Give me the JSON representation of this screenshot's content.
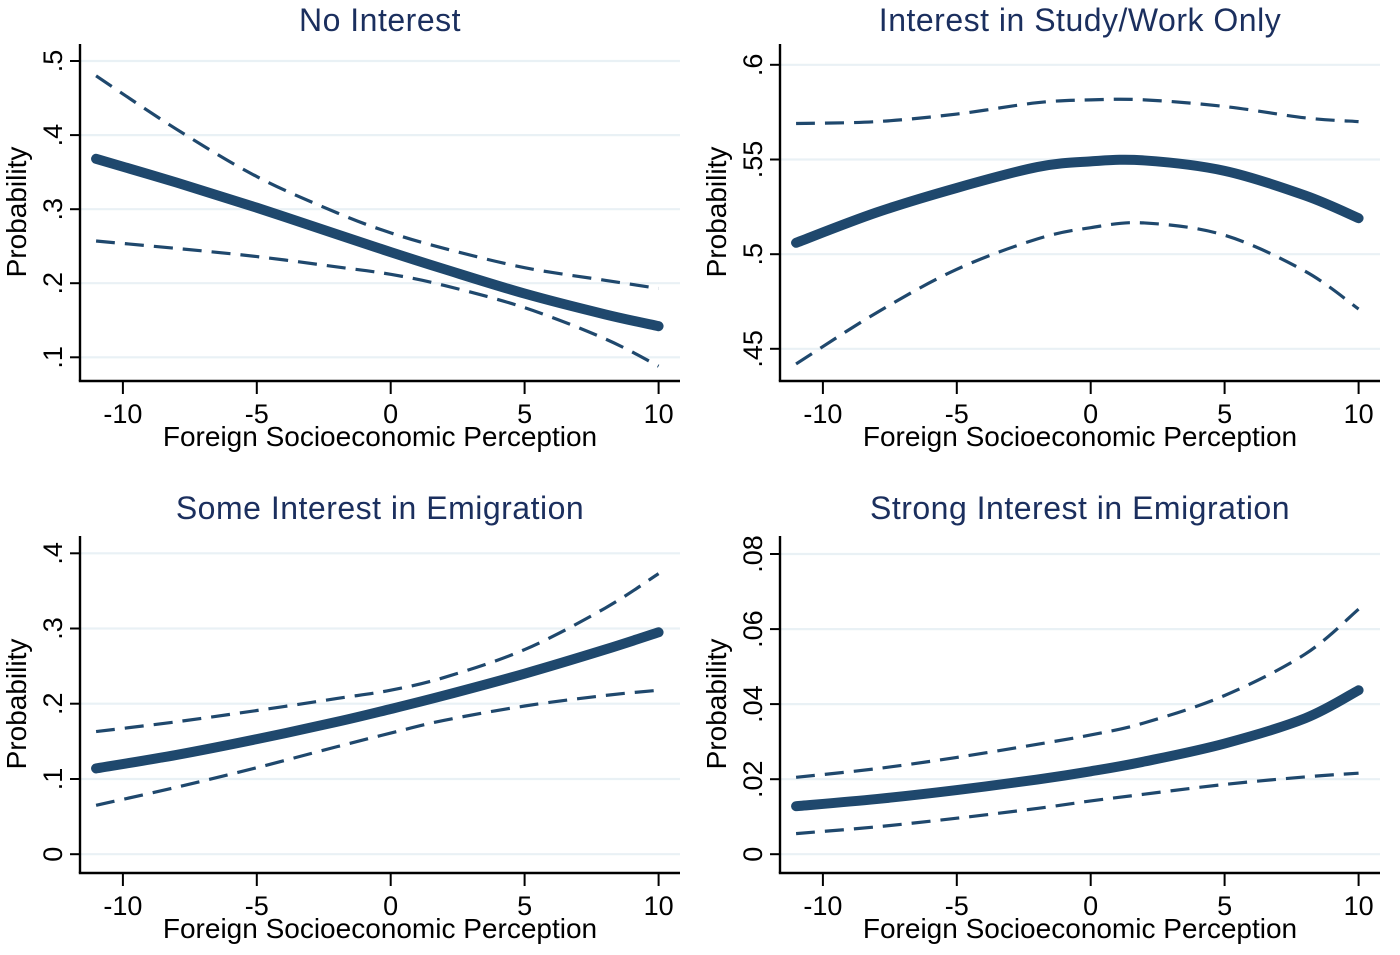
{
  "figure": {
    "background": "#ffffff",
    "line_color": "#1f486d",
    "title_color": "#1b2f5e",
    "grid_color": "#e9f1f5",
    "axis_color": "#000000",
    "layout": "2x2 panel grid",
    "legend": "none"
  },
  "chart_data": [
    {
      "type": "line",
      "title": "No Interest",
      "xlabel": "Foreign Socioeconomic Perception",
      "ylabel": "Probability",
      "x": [
        -11,
        -8,
        -5,
        -2,
        0,
        2,
        5,
        8,
        10
      ],
      "xlim": [
        -11.6,
        10.8
      ],
      "xticks": [
        -10,
        -5,
        0,
        5,
        10
      ],
      "xtick_labels": [
        "-10",
        "-5",
        "0",
        "5",
        "10"
      ],
      "ylim": [
        0.068,
        0.523
      ],
      "yticks": [
        0.1,
        0.2,
        0.3,
        0.4,
        0.5
      ],
      "ytick_labels": [
        ".1",
        ".2",
        ".3",
        ".4",
        ".5"
      ],
      "grid": true,
      "series": [
        {
          "key": "fit",
          "name": "Predicted probability",
          "style": "solid",
          "values": [
            0.368,
            0.336,
            0.302,
            0.266,
            0.242,
            0.219,
            0.186,
            0.158,
            0.142
          ]
        },
        {
          "key": "ci-upper",
          "name": "95% CI upper bound",
          "style": "dashed",
          "values": [
            0.48,
            0.408,
            0.344,
            0.295,
            0.268,
            0.247,
            0.221,
            0.204,
            0.193
          ]
        },
        {
          "key": "ci-lower",
          "name": "95% CI lower bound",
          "style": "dashed",
          "values": [
            0.257,
            0.247,
            0.236,
            0.222,
            0.212,
            0.197,
            0.167,
            0.125,
            0.088
          ]
        }
      ]
    },
    {
      "type": "line",
      "title": "Interest in Study/Work Only",
      "xlabel": "Foreign Socioeconomic Perception",
      "ylabel": "Probability",
      "x": [
        -11,
        -8,
        -5,
        -2,
        0,
        2,
        5,
        8,
        10
      ],
      "xlim": [
        -11.6,
        10.8
      ],
      "xticks": [
        -10,
        -5,
        0,
        5,
        10
      ],
      "xtick_labels": [
        "-10",
        "-5",
        "0",
        "5",
        "10"
      ],
      "ylim": [
        0.433,
        0.611
      ],
      "yticks": [
        0.45,
        0.5,
        0.55,
        0.6
      ],
      "ytick_labels": [
        ".45",
        ".5",
        ".55",
        ".6"
      ],
      "grid": true,
      "series": [
        {
          "key": "fit",
          "name": "Predicted probability",
          "style": "solid",
          "values": [
            0.506,
            0.522,
            0.535,
            0.546,
            0.549,
            0.5495,
            0.544,
            0.531,
            0.519
          ]
        },
        {
          "key": "ci-upper",
          "name": "95% CI upper bound",
          "style": "dashed",
          "values": [
            0.569,
            0.57,
            0.574,
            0.58,
            0.5815,
            0.5815,
            0.578,
            0.572,
            0.57
          ]
        },
        {
          "key": "ci-lower",
          "name": "95% CI lower bound",
          "style": "dashed",
          "values": [
            0.442,
            0.469,
            0.492,
            0.508,
            0.514,
            0.5165,
            0.51,
            0.491,
            0.471
          ]
        }
      ]
    },
    {
      "type": "line",
      "title": "Some Interest in Emigration",
      "xlabel": "Foreign Socioeconomic Perception",
      "ylabel": "Probability",
      "x": [
        -11,
        -8,
        -5,
        -2,
        0,
        2,
        5,
        8,
        10
      ],
      "xlim": [
        -11.6,
        10.8
      ],
      "xticks": [
        -10,
        -5,
        0,
        5,
        10
      ],
      "xtick_labels": [
        "-10",
        "-5",
        "0",
        "5",
        "10"
      ],
      "ylim": [
        -0.025,
        0.423
      ],
      "yticks": [
        0,
        0.1,
        0.2,
        0.3,
        0.4
      ],
      "ytick_labels": [
        "0",
        ".1",
        ".2",
        ".3",
        ".4"
      ],
      "grid": true,
      "series": [
        {
          "key": "fit",
          "name": "Predicted probability",
          "style": "solid",
          "values": [
            0.114,
            0.132,
            0.153,
            0.176,
            0.193,
            0.211,
            0.24,
            0.272,
            0.295
          ]
        },
        {
          "key": "ci-upper",
          "name": "95% CI upper bound",
          "style": "dashed",
          "values": [
            0.163,
            0.176,
            0.191,
            0.207,
            0.218,
            0.235,
            0.272,
            0.327,
            0.373
          ]
        },
        {
          "key": "ci-lower",
          "name": "95% CI lower bound",
          "style": "dashed",
          "values": [
            0.065,
            0.089,
            0.115,
            0.143,
            0.161,
            0.178,
            0.197,
            0.211,
            0.218
          ]
        }
      ]
    },
    {
      "type": "line",
      "title": "Strong Interest in Emigration",
      "xlabel": "Foreign Socioeconomic Perception",
      "ylabel": "Probability",
      "x": [
        -11,
        -8,
        -5,
        -2,
        0,
        2,
        5,
        8,
        10
      ],
      "xlim": [
        -11.6,
        10.8
      ],
      "xticks": [
        -10,
        -5,
        0,
        5,
        10
      ],
      "xtick_labels": [
        "-10",
        "-5",
        "0",
        "5",
        "10"
      ],
      "ylim": [
        -0.005,
        0.0848
      ],
      "yticks": [
        0,
        0.02,
        0.04,
        0.06,
        0.08
      ],
      "ytick_labels": [
        "0",
        ".02",
        ".04",
        ".06",
        ".08"
      ],
      "grid": true,
      "series": [
        {
          "key": "fit",
          "name": "Predicted probability",
          "style": "solid",
          "values": [
            0.0128,
            0.0147,
            0.0171,
            0.0199,
            0.0221,
            0.0247,
            0.0295,
            0.0362,
            0.0437
          ]
        },
        {
          "key": "ci-upper",
          "name": "95% CI upper bound",
          "style": "dashed",
          "values": [
            0.0205,
            0.0228,
            0.0258,
            0.0293,
            0.0318,
            0.035,
            0.0423,
            0.0533,
            0.0653
          ]
        },
        {
          "key": "ci-lower",
          "name": "95% CI lower bound",
          "style": "dashed",
          "values": [
            0.0055,
            0.0073,
            0.0096,
            0.0122,
            0.0142,
            0.016,
            0.0186,
            0.0206,
            0.0216
          ]
        }
      ]
    }
  ]
}
